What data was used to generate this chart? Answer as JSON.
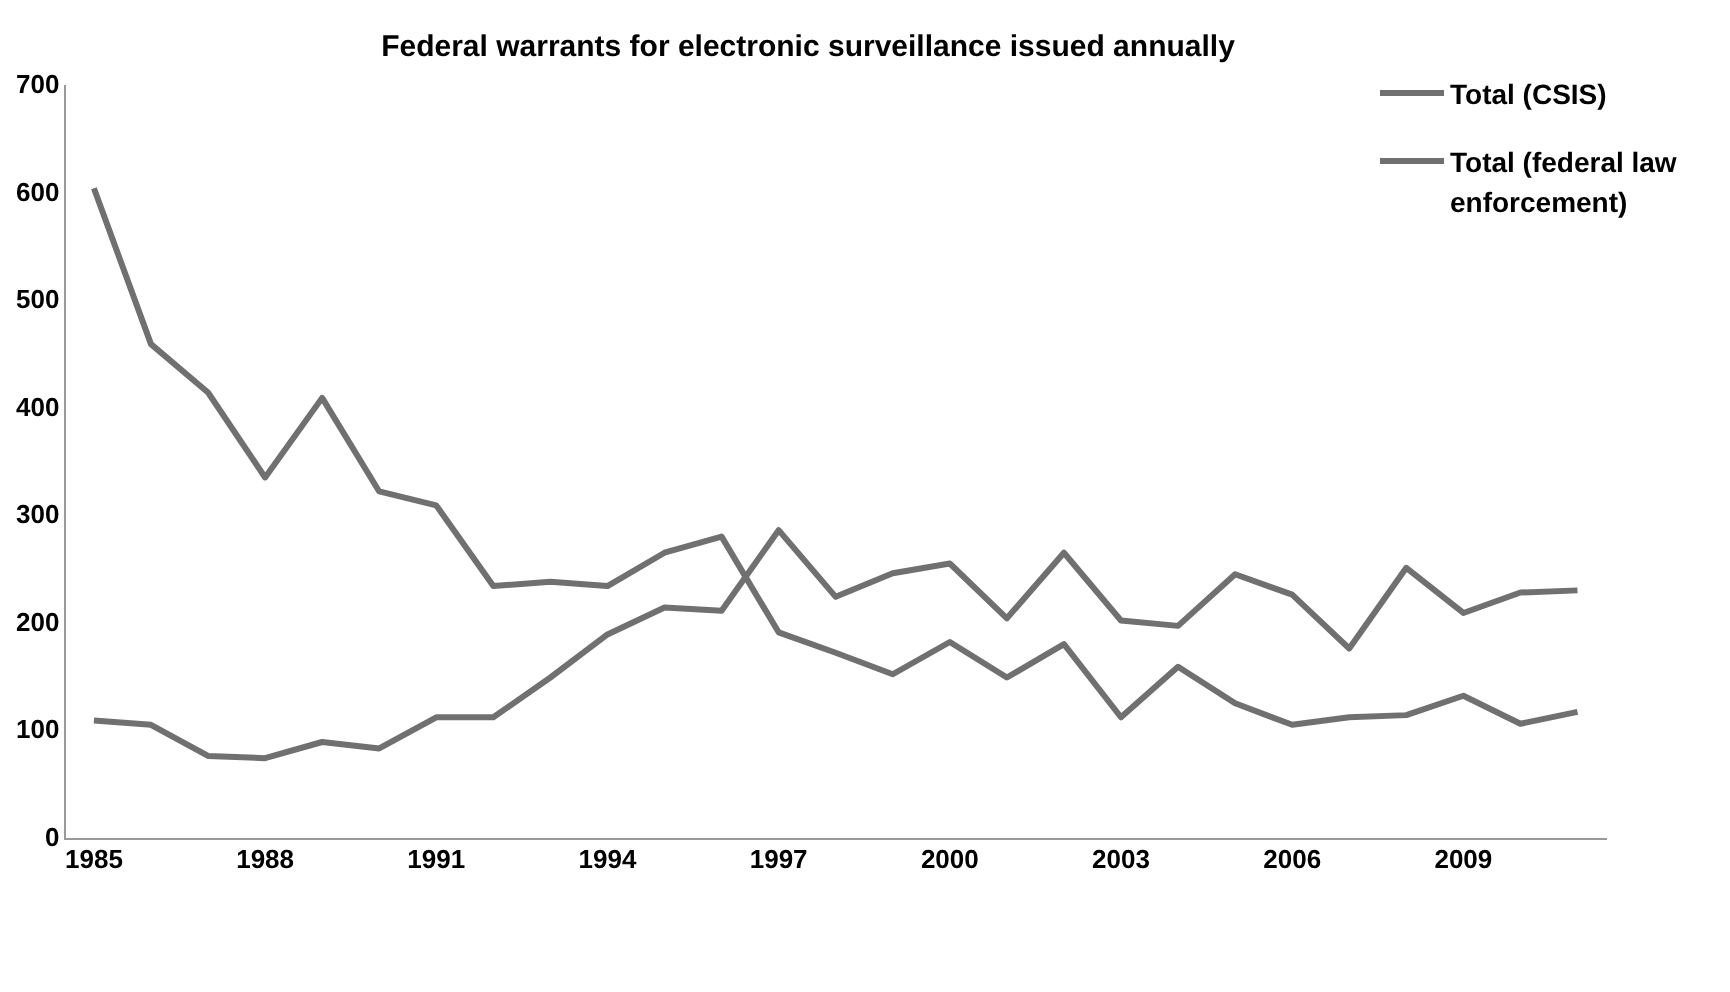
{
  "chart_data": {
    "type": "line",
    "title": "Federal warrants for electronic surveillance issued annually",
    "x": [
      1985,
      1986,
      1987,
      1988,
      1989,
      1990,
      1991,
      1992,
      1993,
      1994,
      1995,
      1996,
      1997,
      1998,
      1999,
      2000,
      2001,
      2002,
      2003,
      2004,
      2005,
      2006,
      2007,
      2008,
      2009,
      2010,
      2011
    ],
    "series": [
      {
        "name": "Total (CSIS)",
        "color": "#707070",
        "values": [
          110,
          106,
          77,
          75,
          90,
          84,
          113,
          113,
          150,
          190,
          215,
          212,
          287,
          225,
          247,
          256,
          205,
          266,
          203,
          198,
          246,
          227,
          177,
          252,
          210,
          229,
          231
        ]
      },
      {
        "name": "Total (federal law enforcement)",
        "color": "#707070",
        "values": [
          605,
          460,
          415,
          336,
          410,
          323,
          310,
          235,
          239,
          235,
          266,
          281,
          192,
          173,
          153,
          183,
          150,
          181,
          113,
          160,
          126,
          106,
          113,
          115,
          133,
          107,
          118
        ]
      }
    ],
    "xlim": [
      1984.5,
      2011.5
    ],
    "xticks": [
      1985,
      1988,
      1991,
      1994,
      1997,
      2000,
      2003,
      2006,
      2009
    ],
    "ylim": [
      0,
      700
    ],
    "yticks": [
      0,
      100,
      200,
      300,
      400,
      500,
      600,
      700
    ],
    "grid": false,
    "legend": "right",
    "marker": "none",
    "line_style": "solid"
  }
}
